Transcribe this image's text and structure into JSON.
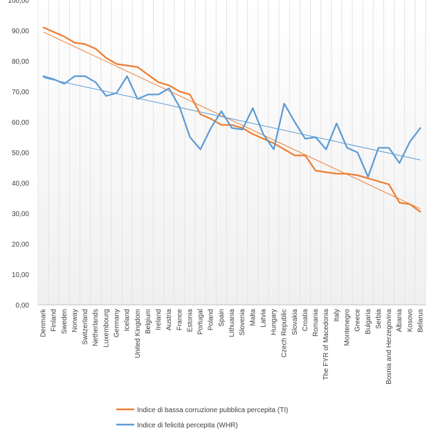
{
  "chart_data": {
    "type": "line",
    "title": "",
    "xlabel": "",
    "ylabel": "",
    "ylim": [
      0,
      100
    ],
    "yticks": [
      "0,00",
      "10,00",
      "20,00",
      "30,00",
      "40,00",
      "50,00",
      "60,00",
      "70,00",
      "80,00",
      "90,00",
      "100,00"
    ],
    "grid": "vertical",
    "legend_position": "bottom",
    "categories": [
      "Denmark",
      "Finland",
      "Sweden",
      "Norway",
      "Switzerland",
      "Netherlands",
      "Luxembourg",
      "Germany",
      "Iceland",
      "United Kingdom",
      "Belgium",
      "Ireland",
      "Austria",
      "France",
      "Estonia",
      "Portugal",
      "Poland",
      "Spain",
      "Lithuania",
      "Slovenia",
      "Malta",
      "Latvia",
      "Hungary",
      "Czech Republic",
      "Slovakia",
      "Croatia",
      "Romania",
      "The FYR of Macedonia",
      "Italy",
      "Montenegro",
      "Greece",
      "Bulgaria",
      "Serbia",
      "Bosnia and Herzegovina",
      "Albania",
      "Kosovo",
      "Belarus"
    ],
    "series": [
      {
        "name": "Indice di bassa corruzione pubblica percepita (TI)",
        "color": "#ed7d31",
        "values": [
          91.0,
          89.5,
          88.0,
          86.0,
          85.5,
          84.0,
          81.0,
          79.0,
          78.5,
          78.0,
          75.5,
          73.0,
          72.0,
          70.0,
          69.0,
          62.5,
          61.0,
          59.0,
          59.0,
          58.0,
          56.0,
          54.5,
          53.0,
          51.0,
          49.0,
          49.0,
          44.0,
          43.5,
          43.0,
          43.0,
          42.5,
          41.5,
          40.5,
          39.5,
          33.5,
          33.0,
          30.5
        ],
        "trendline": {
          "color": "#ed7d31",
          "start": 89.5,
          "end": 31.5
        }
      },
      {
        "name": "Indice di felicità percepita (WHR)",
        "color": "#5b9bd5",
        "values": [
          75.0,
          74.0,
          72.5,
          75.0,
          75.0,
          73.0,
          68.5,
          69.5,
          75.0,
          67.5,
          69.0,
          69.0,
          71.0,
          65.0,
          55.0,
          51.0,
          58.0,
          63.5,
          58.0,
          57.5,
          64.5,
          56.0,
          51.0,
          66.0,
          60.0,
          54.5,
          55.0,
          51.0,
          59.5,
          51.5,
          50.0,
          42.0,
          51.5,
          51.5,
          46.5,
          53.5,
          58.0
        ],
        "trendline": {
          "color": "#5b9bd5",
          "start": 74.5,
          "end": 47.5
        }
      }
    ]
  }
}
